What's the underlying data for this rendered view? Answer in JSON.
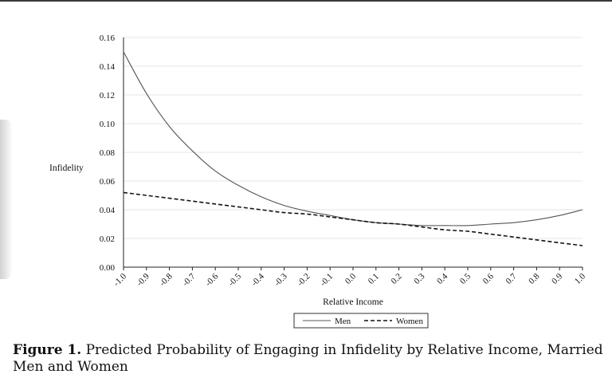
{
  "chart_data": {
    "type": "line",
    "ylabel": "Infidelity",
    "xlabel": "Relative Income",
    "ylim": [
      0,
      0.16
    ],
    "yticks": [
      "0.00",
      "0.02",
      "0.04",
      "0.06",
      "0.08",
      "0.10",
      "0.12",
      "0.14",
      "0.16"
    ],
    "x": [
      -1.0,
      -0.9,
      -0.8,
      -0.7,
      -0.6,
      -0.5,
      -0.4,
      -0.3,
      -0.2,
      -0.1,
      0.0,
      0.1,
      0.2,
      0.3,
      0.4,
      0.5,
      0.6,
      0.7,
      0.8,
      0.9,
      1.0
    ],
    "xticks": [
      "-1.0",
      "-0.9",
      "-0.8",
      "-0.7",
      "-0.6",
      "-0.5",
      "-0.4",
      "-0.3",
      "-0.2",
      "-0.1",
      "0.0",
      "0.1",
      "0.2",
      "0.3",
      "0.4",
      "0.5",
      "0.6",
      "0.7",
      "0.8",
      "0.9",
      "1.0"
    ],
    "grid": true,
    "legend_position": "bottom",
    "series": [
      {
        "name": "Men",
        "style": "solid",
        "values": [
          0.15,
          0.121,
          0.098,
          0.081,
          0.067,
          0.057,
          0.049,
          0.043,
          0.039,
          0.036,
          0.033,
          0.031,
          0.03,
          0.029,
          0.029,
          0.029,
          0.03,
          0.031,
          0.033,
          0.036,
          0.04
        ]
      },
      {
        "name": "Women",
        "style": "dashed",
        "values": [
          0.052,
          0.05,
          0.048,
          0.046,
          0.044,
          0.042,
          0.04,
          0.038,
          0.037,
          0.035,
          0.033,
          0.031,
          0.03,
          0.028,
          0.026,
          0.025,
          0.023,
          0.021,
          0.019,
          0.017,
          0.015
        ]
      }
    ]
  },
  "caption": {
    "label": "Figure 1.",
    "text": " Predicted Probability of Engaging in Infidelity by Relative Income, Married Men and Women"
  },
  "colors": {
    "line": "#555555",
    "dashed": "#111111",
    "grid": "#e4e4e4",
    "axis": "#222222"
  }
}
